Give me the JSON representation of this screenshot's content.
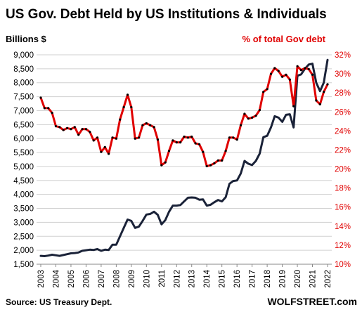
{
  "chart_data": {
    "type": "line",
    "title": "US Gov. Debt Held by US Institutions  & Individuals",
    "ylabel_left": "Billions  $",
    "ylabel_right": "% of total Gov debt",
    "source": "Source: US Treasury Dept.",
    "brand": "WOLFSTREET.com",
    "ylim_left": [
      1500,
      9000
    ],
    "ylim_right": [
      10,
      32
    ],
    "xlim": [
      2003,
      2022
    ],
    "yticks_left": [
      "1,500",
      "2,000",
      "2,500",
      "3,000",
      "3,500",
      "4,000",
      "4,500",
      "5,000",
      "5,500",
      "6,000",
      "6,500",
      "7,000",
      "7,500",
      "8,000",
      "8,500",
      "9,000"
    ],
    "yticks_right": [
      "10%",
      "12%",
      "14%",
      "16%",
      "18%",
      "20%",
      "22%",
      "24%",
      "26%",
      "28%",
      "30%",
      "32%"
    ],
    "xticks": [
      "2003",
      "2004",
      "2005",
      "2006",
      "2007",
      "2008",
      "2009",
      "2010",
      "2011",
      "2012",
      "2013",
      "2014",
      "2015",
      "2016",
      "2017",
      "2018",
      "2019",
      "2020",
      "2021",
      "2022"
    ],
    "grid": true,
    "colors": {
      "billions": "#1a2238",
      "percent": "#e00000",
      "grid": "#d0d0d0"
    },
    "series": [
      {
        "name": "Billions $",
        "axis": "left",
        "x": [
          2003.0,
          2003.25,
          2003.5,
          2003.75,
          2004.0,
          2004.25,
          2004.5,
          2004.75,
          2005.0,
          2005.25,
          2005.5,
          2005.75,
          2006.0,
          2006.25,
          2006.5,
          2006.75,
          2007.0,
          2007.25,
          2007.5,
          2007.75,
          2008.0,
          2008.25,
          2008.5,
          2008.75,
          2009.0,
          2009.25,
          2009.5,
          2009.75,
          2010.0,
          2010.25,
          2010.5,
          2010.75,
          2011.0,
          2011.25,
          2011.5,
          2011.75,
          2012.0,
          2012.25,
          2012.5,
          2012.75,
          2013.0,
          2013.25,
          2013.5,
          2013.75,
          2014.0,
          2014.25,
          2014.5,
          2014.75,
          2015.0,
          2015.25,
          2015.5,
          2015.75,
          2016.0,
          2016.25,
          2016.5,
          2016.75,
          2017.0,
          2017.25,
          2017.5,
          2017.75,
          2018.0,
          2018.25,
          2018.5,
          2018.75,
          2019.0,
          2019.25,
          2019.5,
          2019.75,
          2020.0,
          2020.25,
          2020.5,
          2020.75,
          2021.0,
          2021.25,
          2021.5,
          2021.75,
          2022.0
        ],
        "values": [
          1800,
          1790,
          1810,
          1840,
          1820,
          1800,
          1830,
          1860,
          1890,
          1900,
          1920,
          1980,
          2000,
          2020,
          2010,
          2040,
          1980,
          2020,
          2010,
          2200,
          2200,
          2500,
          2800,
          3100,
          3050,
          2800,
          2850,
          3050,
          3280,
          3300,
          3380,
          3270,
          2930,
          3080,
          3380,
          3600,
          3600,
          3620,
          3750,
          3880,
          3890,
          3880,
          3810,
          3820,
          3600,
          3630,
          3720,
          3800,
          3750,
          3900,
          4380,
          4480,
          4500,
          4750,
          5200,
          5100,
          5050,
          5200,
          5460,
          6050,
          6100,
          6400,
          6800,
          6750,
          6600,
          6850,
          6870,
          6400,
          8250,
          8300,
          8500,
          8650,
          8680,
          8000,
          7700,
          8000,
          8820
        ]
      },
      {
        "name": "% of total Gov debt",
        "axis": "right",
        "x": [
          2003.0,
          2003.25,
          2003.5,
          2003.75,
          2004.0,
          2004.25,
          2004.5,
          2004.75,
          2005.0,
          2005.25,
          2005.5,
          2005.75,
          2006.0,
          2006.25,
          2006.5,
          2006.75,
          2007.0,
          2007.25,
          2007.5,
          2007.75,
          2008.0,
          2008.25,
          2008.5,
          2008.75,
          2009.0,
          2009.25,
          2009.5,
          2009.75,
          2010.0,
          2010.25,
          2010.5,
          2010.75,
          2011.0,
          2011.25,
          2011.5,
          2011.75,
          2012.0,
          2012.25,
          2012.5,
          2012.75,
          2013.0,
          2013.25,
          2013.5,
          2013.75,
          2014.0,
          2014.25,
          2014.5,
          2014.75,
          2015.0,
          2015.25,
          2015.5,
          2015.75,
          2016.0,
          2016.25,
          2016.5,
          2016.75,
          2017.0,
          2017.25,
          2017.5,
          2017.75,
          2018.0,
          2018.25,
          2018.5,
          2018.75,
          2019.0,
          2019.25,
          2019.5,
          2019.75,
          2020.0,
          2020.25,
          2020.5,
          2020.75,
          2021.0,
          2021.25,
          2021.5,
          2021.75,
          2022.0
        ],
        "values": [
          27.5,
          26.4,
          26.4,
          25.9,
          24.5,
          24.4,
          24.1,
          24.3,
          24.2,
          24.4,
          23.6,
          24.2,
          24.2,
          23.9,
          23.0,
          23.3,
          21.8,
          22.3,
          21.6,
          23.3,
          23.2,
          25.2,
          26.5,
          27.8,
          26.5,
          23.2,
          23.3,
          24.6,
          24.8,
          24.6,
          24.4,
          23.1,
          20.4,
          20.7,
          21.9,
          23.0,
          22.8,
          22.8,
          23.4,
          23.3,
          23.4,
          22.7,
          22.6,
          21.8,
          20.3,
          20.4,
          20.6,
          20.9,
          20.9,
          21.9,
          23.3,
          23.3,
          23.1,
          24.6,
          25.8,
          25.3,
          25.4,
          25.6,
          26.2,
          28.1,
          28.4,
          30.0,
          30.6,
          30.3,
          29.7,
          29.9,
          29.4,
          26.6,
          30.8,
          30.4,
          30.6,
          30.5,
          29.9,
          27.2,
          26.8,
          28.1,
          28.9
        ]
      }
    ]
  }
}
